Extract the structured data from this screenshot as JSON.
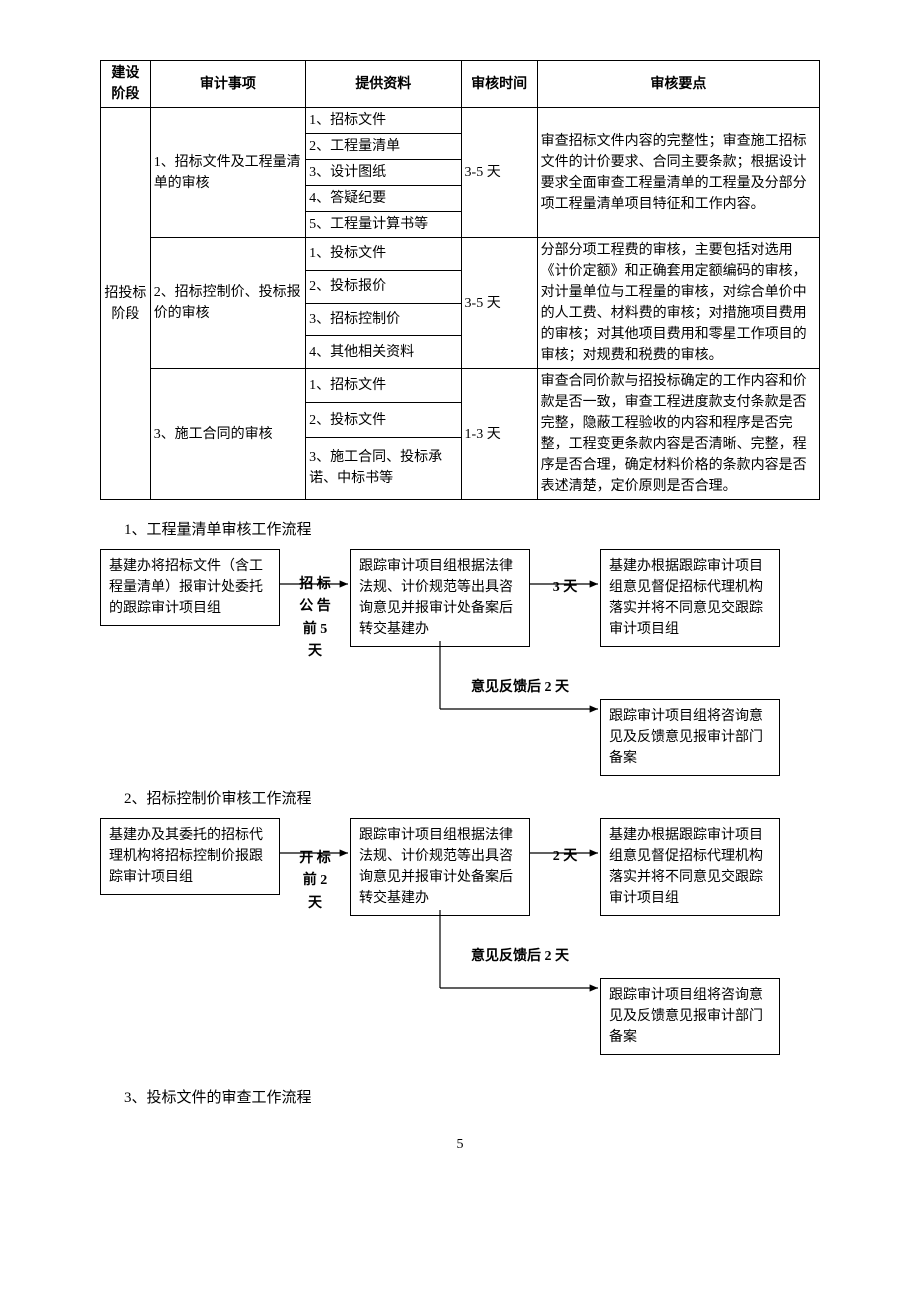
{
  "table": {
    "headers": [
      "建设\n阶段",
      "审计事项",
      "提供资料",
      "审核时间",
      "审核要点"
    ],
    "stage_label": "招投标\n阶段",
    "rows": [
      {
        "item": "1、招标文件及工程量清单的审核",
        "materials": [
          "1、招标文件",
          "2、工程量清单",
          "3、设计图纸",
          "4、答疑纪要",
          "5、工程量计算书等"
        ],
        "time": "3-5 天",
        "keypoints": "审查招标文件内容的完整性；审查施工招标文件的计价要求、合同主要条款；根据设计要求全面审查工程量清单的工程量及分部分项工程量清单项目特征和工作内容。"
      },
      {
        "item": "2、招标控制价、投标报价的审核",
        "materials": [
          "1、投标文件",
          "2、投标报价",
          "3、招标控制价",
          "4、其他相关资料"
        ],
        "time": "3-5 天",
        "keypoints": "分部分项工程费的审核，主要包括对选用《计价定额》和正确套用定额编码的审核，对计量单位与工程量的审核，对综合单价中的人工费、材料费的审核；对措施项目费用的审核；对其他项目费用和零星工作项目的审核；对规费和税费的审核。"
      },
      {
        "item": "3、施工合同的审核",
        "materials": [
          "1、招标文件",
          "2、投标文件",
          "3、施工合同、投标承诺、中标书等"
        ],
        "time": "1-3 天",
        "keypoints": "审查合同价款与招投标确定的工作内容和价款是否一致，审查工程进度款支付条款是否完整，隐蔽工程验收的内容和程序是否完整，工程变更条款内容是否清晰、完整，程序是否合理，确定材料价格的条款内容是否表述清楚，定价原则是否合理。"
      }
    ]
  },
  "section1": {
    "title": "1、工程量清单审核工作流程",
    "box1": "基建办将招标文件（含工程量清单）报审计处委托的跟踪审计项目组",
    "arrow1": "招 标\n公 告\n前 5\n天",
    "box2": "跟踪审计项目组根据法律法规、计价规范等出具咨询意见并报审计处备案后转交基建办",
    "arrow2": "3 天",
    "box3": "基建办根据跟踪审计项目组意见督促招标代理机构落实并将不同意见交跟踪审计项目组",
    "arrow3": "意见反馈后 2 天",
    "box4": "跟踪审计项目组将咨询意见及反馈意见报审计部门备案"
  },
  "section2": {
    "title": "2、招标控制价审核工作流程",
    "box1": "基建办及其委托的招标代理机构将招标控制价报跟踪审计项目组",
    "arrow1": "开 标\n前 2\n天",
    "box2": "跟踪审计项目组根据法律法规、计价规范等出具咨询意见并报审计处备案后转交基建办",
    "arrow2": "2 天",
    "box3": "基建办根据跟踪审计项目组意见督促招标代理机构落实并将不同意见交跟踪审计项目组",
    "arrow3": "意见反馈后 2 天",
    "box4": "跟踪审计项目组将咨询意见及反馈意见报审计部门备案"
  },
  "section3_title": "3、投标文件的审查工作流程",
  "page_number": "5"
}
